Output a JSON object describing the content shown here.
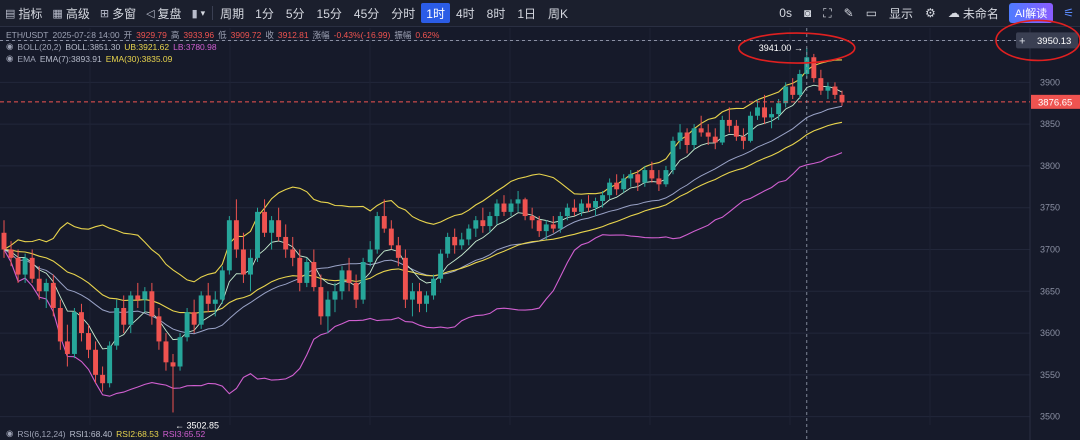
{
  "toolbar": {
    "left": [
      {
        "icon": "indicator-icon",
        "label": "指标"
      },
      {
        "icon": "advanced-icon",
        "label": "高级"
      },
      {
        "icon": "multi-window-icon",
        "label": "多窗"
      },
      {
        "icon": "replay-icon",
        "label": "复盘"
      },
      {
        "icon": "chart-type-icon",
        "label": ""
      }
    ],
    "period_label": "周期",
    "timeframes": [
      "1分",
      "5分",
      "15分",
      "45分",
      "分时",
      "1时",
      "4时",
      "8时",
      "1日",
      "周K"
    ],
    "active_timeframe": "1时",
    "right": {
      "countdown": "0s",
      "display_label": "显示",
      "unnamed_label": "未命名",
      "ai_label": "AI解读"
    }
  },
  "legend": {
    "symbol": "ETH/USDT",
    "datetime": "2025-07-28 14:00",
    "open_label": "开",
    "open": "3929.79",
    "high_label": "高",
    "high": "3933.96",
    "low_label": "低",
    "low": "3909.72",
    "close_label": "收",
    "close": "3912.81",
    "change_label": "涨幅",
    "change": "-0.43%(-16.99)",
    "amplitude_label": "振幅",
    "amplitude": "0.62%",
    "boll_name": "BOLL(20,2)",
    "boll_mid": "BOLL:3851.30",
    "boll_ub": "UB:3921.62",
    "boll_lb": "LB:3780.98",
    "ema_name": "EMA",
    "ema7": "EMA(7):3893.91",
    "ema30": "EMA(30):3835.09",
    "rsi_name": "RSI(6,12,24)",
    "rsi1": "RSI1:68.40",
    "rsi2": "RSI2:68.53",
    "rsi3": "RSI3:65.52"
  },
  "annotations": {
    "high_marker": "3941.00",
    "low_marker": "3502.85",
    "crosshair_price": "3950.13",
    "last_price": "3876.65"
  },
  "colors": {
    "up": "#26a69a",
    "down": "#ef5350",
    "boll_band": "#e8d44d",
    "boll_lower": "#d05fd0",
    "ema7": "#c7ecd0",
    "ema30": "#e8d44d",
    "boll_mid": "#9aa3c7",
    "highlight": "#e02020"
  },
  "chart_data": {
    "type": "candlestick",
    "y_ticks": [
      3950,
      3900,
      3850,
      3800,
      3750,
      3700,
      3650,
      3600,
      3550,
      3500
    ],
    "ylim": [
      3490,
      3965
    ],
    "candles_ohlc": [
      [
        3720,
        3735,
        3690,
        3700
      ],
      [
        3700,
        3710,
        3680,
        3690
      ],
      [
        3690,
        3700,
        3660,
        3670
      ],
      [
        3670,
        3695,
        3660,
        3690
      ],
      [
        3690,
        3700,
        3660,
        3665
      ],
      [
        3665,
        3680,
        3640,
        3650
      ],
      [
        3650,
        3665,
        3630,
        3660
      ],
      [
        3660,
        3670,
        3620,
        3630
      ],
      [
        3630,
        3640,
        3580,
        3590
      ],
      [
        3590,
        3610,
        3560,
        3575
      ],
      [
        3575,
        3630,
        3570,
        3625
      ],
      [
        3625,
        3635,
        3590,
        3600
      ],
      [
        3600,
        3610,
        3570,
        3580
      ],
      [
        3580,
        3590,
        3540,
        3550
      ],
      [
        3550,
        3560,
        3530,
        3540
      ],
      [
        3540,
        3590,
        3535,
        3585
      ],
      [
        3585,
        3640,
        3580,
        3630
      ],
      [
        3630,
        3645,
        3600,
        3610
      ],
      [
        3610,
        3650,
        3600,
        3645
      ],
      [
        3645,
        3660,
        3630,
        3640
      ],
      [
        3640,
        3655,
        3625,
        3650
      ],
      [
        3650,
        3660,
        3610,
        3620
      ],
      [
        3620,
        3630,
        3580,
        3590
      ],
      [
        3590,
        3600,
        3555,
        3565
      ],
      [
        3565,
        3575,
        3505,
        3560
      ],
      [
        3560,
        3600,
        3555,
        3595
      ],
      [
        3595,
        3630,
        3590,
        3625
      ],
      [
        3625,
        3640,
        3600,
        3610
      ],
      [
        3610,
        3650,
        3605,
        3645
      ],
      [
        3645,
        3660,
        3625,
        3635
      ],
      [
        3635,
        3650,
        3620,
        3640
      ],
      [
        3640,
        3680,
        3635,
        3675
      ],
      [
        3675,
        3740,
        3670,
        3735
      ],
      [
        3735,
        3760,
        3690,
        3700
      ],
      [
        3700,
        3720,
        3660,
        3670
      ],
      [
        3670,
        3700,
        3650,
        3690
      ],
      [
        3690,
        3750,
        3685,
        3745
      ],
      [
        3745,
        3760,
        3715,
        3720
      ],
      [
        3720,
        3740,
        3700,
        3735
      ],
      [
        3735,
        3750,
        3710,
        3715
      ],
      [
        3715,
        3730,
        3690,
        3700
      ],
      [
        3700,
        3715,
        3680,
        3690
      ],
      [
        3690,
        3700,
        3650,
        3660
      ],
      [
        3660,
        3690,
        3655,
        3685
      ],
      [
        3685,
        3700,
        3650,
        3655
      ],
      [
        3655,
        3670,
        3610,
        3620
      ],
      [
        3620,
        3650,
        3600,
        3640
      ],
      [
        3640,
        3660,
        3625,
        3650
      ],
      [
        3650,
        3680,
        3640,
        3675
      ],
      [
        3675,
        3690,
        3650,
        3660
      ],
      [
        3660,
        3670,
        3630,
        3640
      ],
      [
        3640,
        3690,
        3635,
        3685
      ],
      [
        3685,
        3710,
        3680,
        3700
      ],
      [
        3700,
        3745,
        3695,
        3740
      ],
      [
        3740,
        3760,
        3720,
        3725
      ],
      [
        3725,
        3735,
        3700,
        3705
      ],
      [
        3705,
        3715,
        3680,
        3690
      ],
      [
        3690,
        3700,
        3630,
        3640
      ],
      [
        3640,
        3660,
        3620,
        3650
      ],
      [
        3650,
        3660,
        3625,
        3635
      ],
      [
        3635,
        3650,
        3625,
        3645
      ],
      [
        3645,
        3670,
        3640,
        3665
      ],
      [
        3665,
        3700,
        3660,
        3695
      ],
      [
        3695,
        3720,
        3690,
        3715
      ],
      [
        3715,
        3725,
        3695,
        3705
      ],
      [
        3705,
        3720,
        3700,
        3712
      ],
      [
        3712,
        3730,
        3705,
        3725
      ],
      [
        3725,
        3740,
        3715,
        3735
      ],
      [
        3735,
        3750,
        3720,
        3728
      ],
      [
        3728,
        3745,
        3720,
        3740
      ],
      [
        3740,
        3760,
        3730,
        3755
      ],
      [
        3755,
        3765,
        3740,
        3745
      ],
      [
        3745,
        3760,
        3740,
        3755
      ],
      [
        3755,
        3770,
        3745,
        3760
      ],
      [
        3760,
        3762,
        3735,
        3740
      ],
      [
        3740,
        3750,
        3725,
        3735
      ],
      [
        3735,
        3740,
        3715,
        3722
      ],
      [
        3722,
        3735,
        3712,
        3730
      ],
      [
        3730,
        3740,
        3720,
        3725
      ],
      [
        3725,
        3745,
        3720,
        3740
      ],
      [
        3740,
        3755,
        3735,
        3750
      ],
      [
        3750,
        3760,
        3740,
        3745
      ],
      [
        3745,
        3760,
        3740,
        3755
      ],
      [
        3755,
        3765,
        3745,
        3750
      ],
      [
        3750,
        3762,
        3740,
        3758
      ],
      [
        3758,
        3770,
        3750,
        3765
      ],
      [
        3765,
        3785,
        3760,
        3780
      ],
      [
        3780,
        3790,
        3765,
        3772
      ],
      [
        3772,
        3790,
        3768,
        3785
      ],
      [
        3785,
        3795,
        3775,
        3790
      ],
      [
        3790,
        3795,
        3770,
        3780
      ],
      [
        3780,
        3800,
        3775,
        3795
      ],
      [
        3795,
        3805,
        3780,
        3785
      ],
      [
        3785,
        3795,
        3770,
        3778
      ],
      [
        3778,
        3800,
        3775,
        3795
      ],
      [
        3795,
        3835,
        3790,
        3830
      ],
      [
        3830,
        3850,
        3820,
        3840
      ],
      [
        3840,
        3845,
        3815,
        3825
      ],
      [
        3825,
        3850,
        3820,
        3845
      ],
      [
        3845,
        3860,
        3835,
        3840
      ],
      [
        3840,
        3850,
        3825,
        3835
      ],
      [
        3835,
        3845,
        3820,
        3828
      ],
      [
        3828,
        3860,
        3825,
        3855
      ],
      [
        3855,
        3870,
        3840,
        3848
      ],
      [
        3848,
        3855,
        3830,
        3835
      ],
      [
        3835,
        3845,
        3820,
        3830
      ],
      [
        3830,
        3865,
        3828,
        3860
      ],
      [
        3860,
        3880,
        3855,
        3870
      ],
      [
        3870,
        3885,
        3850,
        3858
      ],
      [
        3858,
        3870,
        3845,
        3862
      ],
      [
        3862,
        3880,
        3855,
        3875
      ],
      [
        3875,
        3900,
        3870,
        3895
      ],
      [
        3895,
        3905,
        3880,
        3885
      ],
      [
        3885,
        3915,
        3880,
        3910
      ],
      [
        3910,
        3941,
        3905,
        3930
      ],
      [
        3930,
        3934,
        3900,
        3905
      ],
      [
        3905,
        3915,
        3885,
        3890
      ],
      [
        3890,
        3900,
        3880,
        3895
      ],
      [
        3895,
        3900,
        3880,
        3885
      ],
      [
        3885,
        3890,
        3872,
        3876
      ]
    ]
  }
}
